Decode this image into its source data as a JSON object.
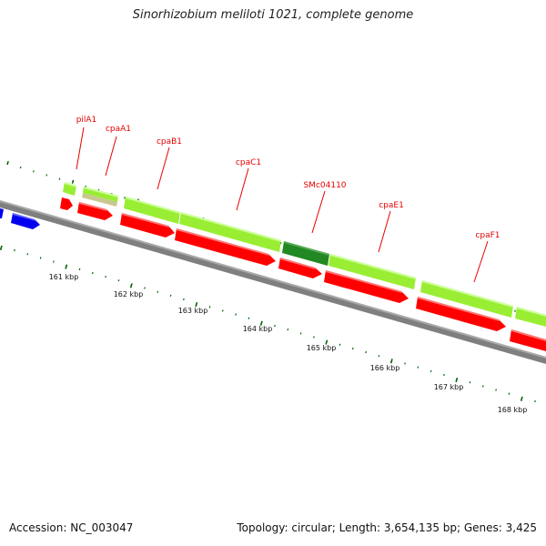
{
  "title": "Sinorhizobium meliloti 1021, complete genome",
  "footer": {
    "accession": "Accession: NC_003047",
    "stats": "Topology: circular; Length: 3,654,135 bp; Genes: 3,425"
  },
  "scale": {
    "unit": "kbp",
    "ticks": [
      {
        "kbp": 161,
        "label": "161 kbp"
      },
      {
        "kbp": 162,
        "label": "162 kbp"
      },
      {
        "kbp": 163,
        "label": "163 kbp"
      },
      {
        "kbp": 164,
        "label": "164 kbp"
      },
      {
        "kbp": 165,
        "label": "165 kbp"
      },
      {
        "kbp": 166,
        "label": "166 kbp"
      },
      {
        "kbp": 167,
        "label": "167 kbp"
      },
      {
        "kbp": 168,
        "label": "168 kbp"
      }
    ]
  },
  "gene_labels": [
    "pilA1",
    "cpaA1",
    "cpaB1",
    "cpaC1",
    "SMc04110",
    "cpaE1",
    "cpaF1"
  ],
  "colors": {
    "cds": "#ff0000",
    "gene_light": "#99ee33",
    "gene_dark": "#228822",
    "gene_tan": "#c8c890",
    "other_strand": "#0000ee",
    "backbone": "#7a7a7a",
    "ticks": "#006600",
    "labels": "#e60000"
  }
}
